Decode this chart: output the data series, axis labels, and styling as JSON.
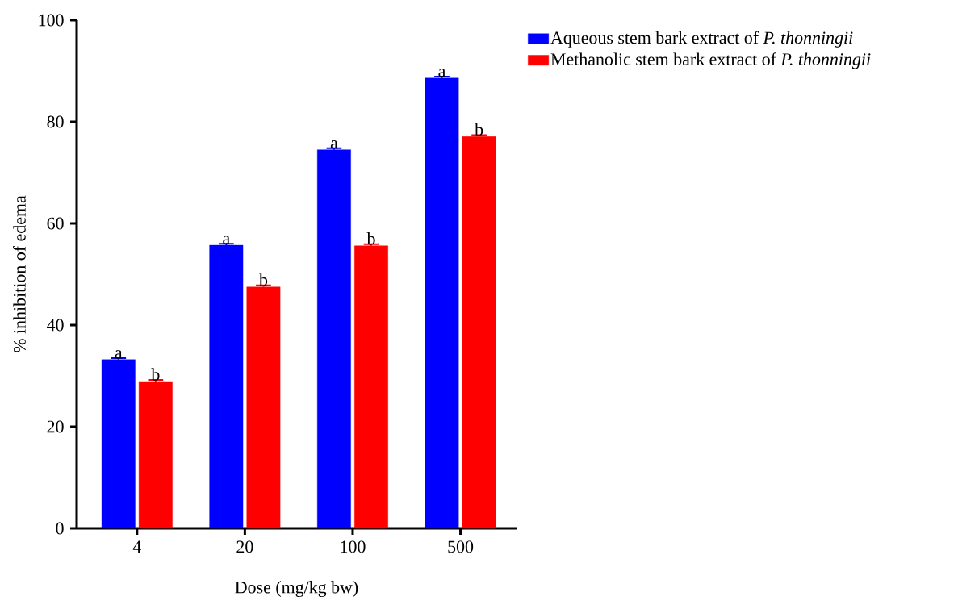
{
  "chart_data": {
    "type": "bar",
    "xlabel": "Dose (mg/kg bw)",
    "ylabel": "% inhibition of edema",
    "categories": [
      "4",
      "20",
      "100",
      "500"
    ],
    "series": [
      {
        "name": "Aqueous stem bark extract of *P. thonningii*",
        "color": "#0000ff",
        "values": [
          33.2,
          55.7,
          74.5,
          88.6
        ],
        "errors": [
          0.3,
          0.3,
          0.3,
          0.3
        ]
      },
      {
        "name": "Methanolic stem bark extract of *P. thonningii*",
        "color": "#ff0000",
        "values": [
          28.9,
          47.5,
          55.6,
          77.1
        ],
        "errors": [
          0.3,
          0.3,
          0.3,
          0.3
        ]
      }
    ],
    "ylim": [
      0,
      100
    ],
    "yticks": [
      0,
      20,
      40,
      60,
      80,
      100
    ],
    "legend": "top right",
    "annotations": [
      {
        "text": "a",
        "x": "4",
        "y": 33.2
      },
      {
        "text": "b",
        "x": "4",
        "y": 28.9
      },
      {
        "text": "a",
        "x": "20",
        "y": 55.7
      },
      {
        "text": "b",
        "x": "20",
        "y": 47.5
      },
      {
        "text": "a",
        "x": "100",
        "y": 74.5
      },
      {
        "text": "b",
        "x": "100",
        "y": 55.6
      },
      {
        "text": "a",
        "x": "500",
        "y": 88.6
      },
      {
        "text": "b",
        "x": "500",
        "y": 77.1
      }
    ]
  }
}
